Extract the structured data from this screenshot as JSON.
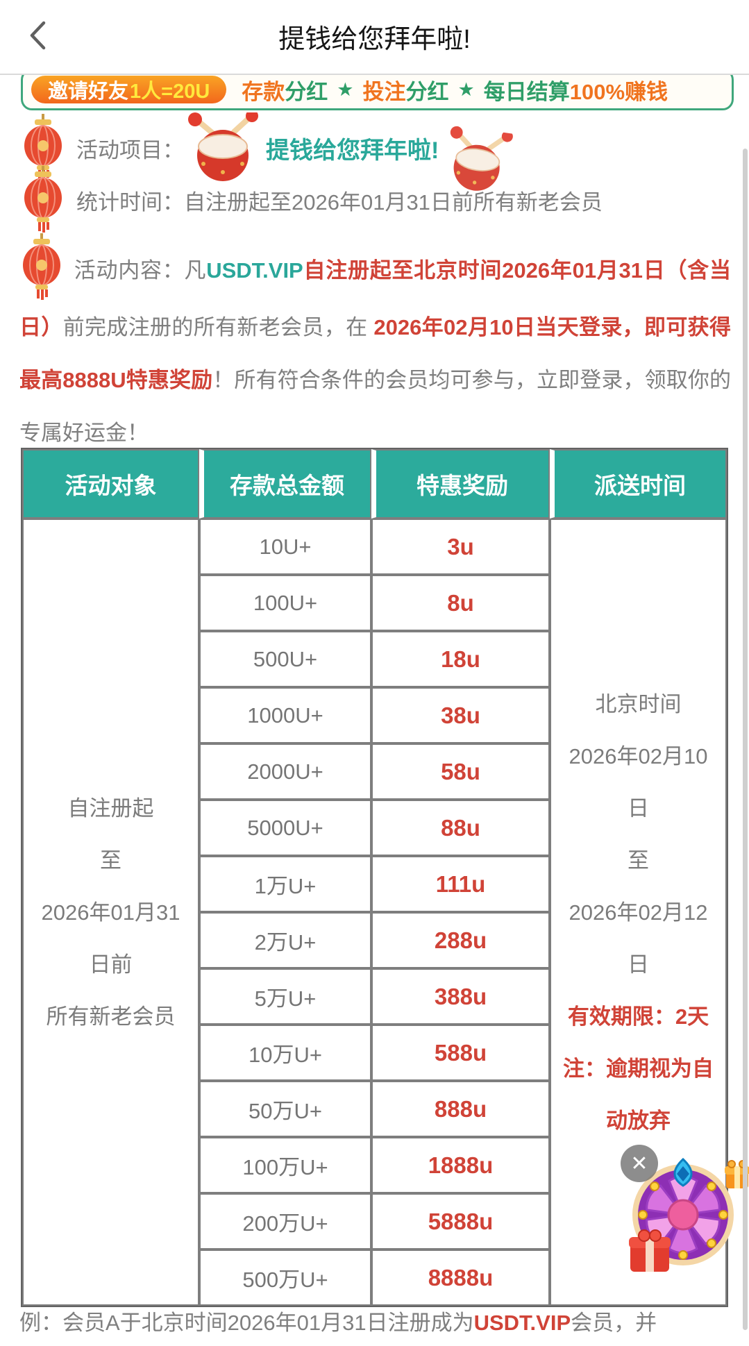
{
  "colors": {
    "teal_header": "#2cab9c",
    "teal_text": "#2aa89a",
    "green": "#2f9e68",
    "orange": "#f0741f",
    "red": "#d04337",
    "gray_text": "#7f7f7f",
    "banner_border": "#3fa77c",
    "badge_yellow": "#ffe93d"
  },
  "navbar": {
    "title": "提钱给您拜年啦!",
    "back_icon": "chevron-left"
  },
  "banner": {
    "badge": {
      "prefix": "邀请好友",
      "highlight": "1人=20U"
    },
    "segments": [
      {
        "text": "存款",
        "color": "orange"
      },
      {
        "text": "分红",
        "color": "green"
      },
      {
        "text": "★",
        "color": "green"
      },
      {
        "text": "投注",
        "color": "orange"
      },
      {
        "text": "分红",
        "color": "green"
      },
      {
        "text": "★",
        "color": "green"
      },
      {
        "text": "每日结算",
        "color": "green"
      },
      {
        "text": "100%赚钱",
        "color": "orange"
      }
    ]
  },
  "info": {
    "project": {
      "label": "活动项目：",
      "title": "提钱给您拜年啦!"
    },
    "stats": {
      "label": "统计时间：",
      "text": "自注册起至2026年01月31日前所有新老会员"
    },
    "content": {
      "label": "活动内容：",
      "segments": [
        {
          "text": "凡",
          "style": "gray"
        },
        {
          "text": "USDT.VIP",
          "style": "teal-bold"
        },
        {
          "text": "自注册起至北京时间2026年01月31日（含当日）",
          "style": "red-bold"
        },
        {
          "text": "前完成注册的所有新老会员，在 ",
          "style": "gray"
        },
        {
          "text": "2026年02月10日当天登录，即可获得最高8888U特惠奖励",
          "style": "red-bold"
        },
        {
          "text": "！所有符合条件的会员均可参与，立即登录，领取你的专属好运金！",
          "style": "gray"
        }
      ]
    }
  },
  "table": {
    "headers": [
      "活动对象",
      "存款总金额",
      "特惠奖励",
      "派送时间"
    ],
    "audience": "自注册起\n至\n2026年01月31\n日前\n所有新老会员",
    "tiers": [
      {
        "deposit": "10U+",
        "reward": "3u"
      },
      {
        "deposit": "100U+",
        "reward": "8u"
      },
      {
        "deposit": "500U+",
        "reward": "18u"
      },
      {
        "deposit": "1000U+",
        "reward": "38u"
      },
      {
        "deposit": "2000U+",
        "reward": "58u"
      },
      {
        "deposit": "5000U+",
        "reward": "88u"
      },
      {
        "deposit": "1万U+",
        "reward": "111u"
      },
      {
        "deposit": "2万U+",
        "reward": "288u"
      },
      {
        "deposit": "5万U+",
        "reward": "388u"
      },
      {
        "deposit": "10万U+",
        "reward": "588u"
      },
      {
        "deposit": "50万U+",
        "reward": "888u"
      },
      {
        "deposit": "100万U+",
        "reward": "1888u"
      },
      {
        "deposit": "200万U+",
        "reward": "5888u"
      },
      {
        "deposit": "500万U+",
        "reward": "8888u"
      }
    ],
    "delivery_time": "北京时间\n2026年02月10\n日\n至\n2026年02月12\n日",
    "delivery_note": "有效期限：2天\n注：逾期视为自\n动放弃"
  },
  "example": {
    "segments": [
      {
        "text": "例：会员A于北京时间2026年01月31日注册成为",
        "style": "gray"
      },
      {
        "text": "USDT.VIP",
        "style": "red-bold"
      },
      {
        "text": "会员，并",
        "style": "gray"
      }
    ]
  },
  "widget": {
    "close_label": "✕",
    "wheel_icon": "prize-wheel",
    "gift_icon": "gift-box"
  }
}
